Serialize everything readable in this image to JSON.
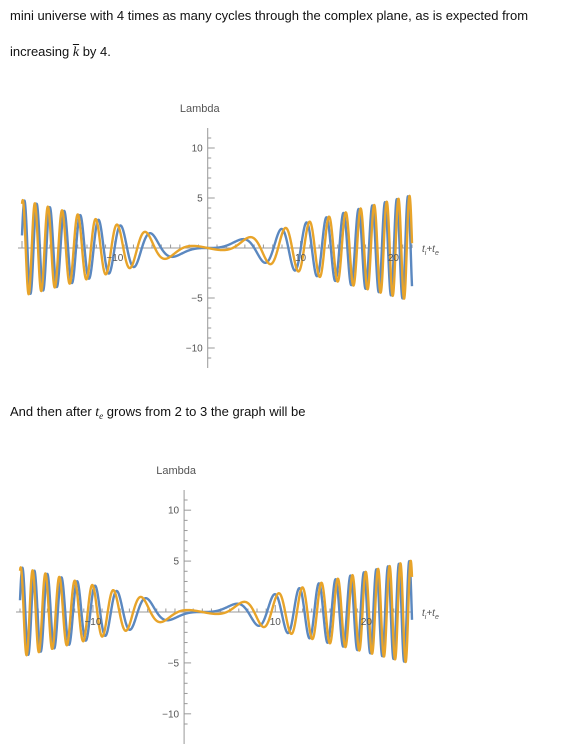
{
  "text": {
    "line1": "mini universe with 4 times as many cycles through the complex plane, as is expected from",
    "line2_pre": "increasing ",
    "line2_var": "k",
    "line2_post": " by 4.",
    "line3_pre": "And then after ",
    "line3_var": "t",
    "line3_sub": "e",
    "line3_post": " grows from 2 to 3 the graph will be"
  },
  "colors": {
    "series_blue": "#5b88c0",
    "series_orange": "#e8a42a",
    "axis": "#999999"
  },
  "chart_data": [
    {
      "type": "line",
      "title": "",
      "ylabel": "Lambda",
      "xlabel_main": "t",
      "xlabel_sub1": "i",
      "xlabel_mid": "+t",
      "xlabel_sub2": "e",
      "xlim": [
        -20,
        22
      ],
      "ylim": [
        -11,
        11
      ],
      "x_ticks": [
        {
          "value": -10,
          "label": "-10"
        },
        {
          "value": 10,
          "label": "10"
        },
        {
          "value": 20,
          "label": "20"
        }
      ],
      "y_ticks": [
        {
          "value": 10,
          "label": "10"
        },
        {
          "value": 5,
          "label": "5"
        },
        {
          "value": -5,
          "label": "-5"
        },
        {
          "value": -10,
          "label": "-10"
        }
      ],
      "grid": false,
      "series": [
        {
          "color": "blue",
          "function": "0.24*t*sin(0.125*t^2)",
          "t_range": [
            -20,
            22
          ]
        },
        {
          "color": "orange",
          "function": "0.24*t*sin(0.125*t^2 - 0.9)",
          "t_range": [
            -20,
            22
          ]
        }
      ]
    },
    {
      "type": "line",
      "title": "",
      "ylabel": "Lambda",
      "xlabel_main": "t",
      "xlabel_sub1": "i",
      "xlabel_mid": "+t",
      "xlabel_sub2": "e",
      "xlim": [
        -18,
        25
      ],
      "ylim": [
        -11,
        11
      ],
      "x_ticks": [
        {
          "value": -10,
          "label": "-10"
        },
        {
          "value": 10,
          "label": "10"
        },
        {
          "value": 20,
          "label": "20"
        }
      ],
      "y_ticks": [
        {
          "value": 10,
          "label": "10"
        },
        {
          "value": 5,
          "label": "5"
        },
        {
          "value": -5,
          "label": "-5"
        },
        {
          "value": -10,
          "label": "-10"
        }
      ],
      "grid": false,
      "series": [
        {
          "color": "blue",
          "function": "0.22*(t-2)*sin(0.125*(t-2)^2)",
          "t_range": [
            -18,
            25
          ]
        },
        {
          "color": "orange",
          "function": "0.22*(t-2)*sin(0.125*(t-2)^2 - 0.9)",
          "t_range": [
            -18,
            25
          ]
        }
      ]
    }
  ]
}
